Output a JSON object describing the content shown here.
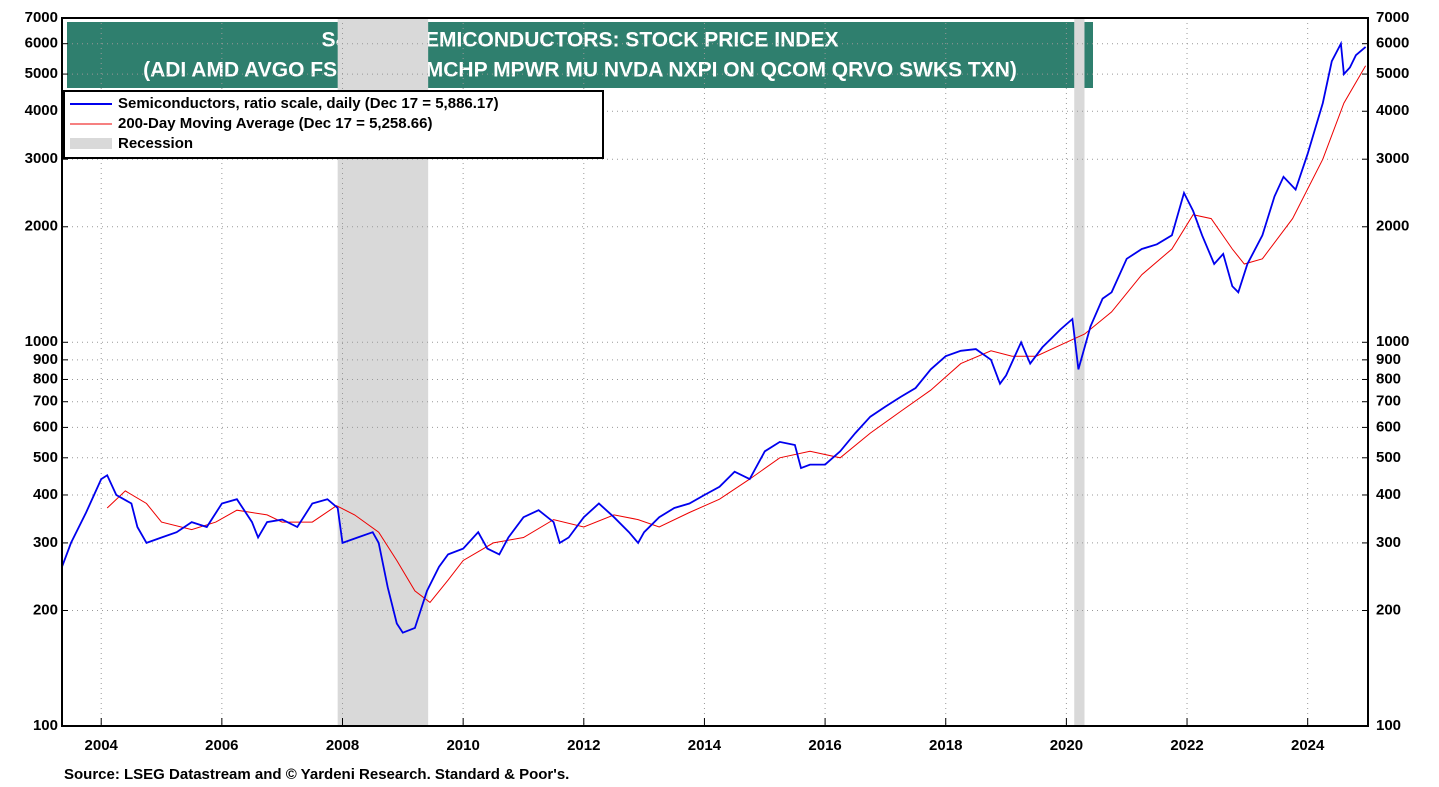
{
  "chart_data": {
    "type": "line",
    "title": "S&P 500 SEMICONDUCTORS: STOCK PRICE INDEX",
    "subtitle": "(ADI AMD AVGO FSLR INTC MCHP MPWR MU NVDA NXPI ON QCOM QRVO SWKS TXN)",
    "source": "Source: LSEG Datastream and © Yardeni Research. Standard & Poor's.",
    "log_scale": true,
    "grid": true,
    "legend": "upper left",
    "xlim": [
      2003.35,
      2025.0
    ],
    "xticks": [
      2004,
      2006,
      2008,
      2010,
      2012,
      2014,
      2016,
      2018,
      2020,
      2022,
      2024
    ],
    "ylim": [
      100,
      7000
    ],
    "yticks": [
      100,
      200,
      300,
      400,
      500,
      600,
      700,
      800,
      900,
      1000,
      2000,
      3000,
      4000,
      5000,
      6000,
      7000
    ],
    "recessions": {
      "name": "Recession",
      "color": "#d9d9d9",
      "ranges": [
        [
          2007.92,
          2009.42
        ],
        [
          2020.13,
          2020.3
        ]
      ]
    },
    "series": [
      {
        "name": "Semiconductors, ratio scale, daily (Dec 17 = 5,886.17)",
        "color": "#0000ee",
        "x": [
          2003.35,
          2003.5,
          2003.75,
          2004.0,
          2004.1,
          2004.25,
          2004.5,
          2004.6,
          2004.75,
          2005.0,
          2005.25,
          2005.5,
          2005.75,
          2006.0,
          2006.25,
          2006.5,
          2006.6,
          2006.75,
          2007.0,
          2007.25,
          2007.5,
          2007.75,
          2007.92,
          2008.0,
          2008.25,
          2008.5,
          2008.6,
          2008.75,
          2008.9,
          2009.0,
          2009.2,
          2009.4,
          2009.6,
          2009.75,
          2010.0,
          2010.25,
          2010.4,
          2010.6,
          2010.75,
          2011.0,
          2011.25,
          2011.5,
          2011.6,
          2011.75,
          2012.0,
          2012.25,
          2012.5,
          2012.75,
          2012.9,
          2013.0,
          2013.25,
          2013.5,
          2013.75,
          2014.0,
          2014.25,
          2014.5,
          2014.75,
          2015.0,
          2015.25,
          2015.5,
          2015.6,
          2015.75,
          2016.0,
          2016.25,
          2016.5,
          2016.75,
          2017.0,
          2017.25,
          2017.5,
          2017.75,
          2018.0,
          2018.25,
          2018.5,
          2018.75,
          2018.9,
          2019.0,
          2019.25,
          2019.4,
          2019.6,
          2019.9,
          2020.1,
          2020.2,
          2020.4,
          2020.6,
          2020.75,
          2021.0,
          2021.25,
          2021.5,
          2021.75,
          2021.95,
          2022.1,
          2022.25,
          2022.45,
          2022.6,
          2022.75,
          2022.85,
          2023.0,
          2023.25,
          2023.45,
          2023.6,
          2023.8,
          2024.0,
          2024.25,
          2024.4,
          2024.55,
          2024.6,
          2024.7,
          2024.8,
          2024.96
        ],
        "values": [
          260,
          300,
          360,
          440,
          450,
          400,
          380,
          330,
          300,
          310,
          320,
          340,
          330,
          380,
          390,
          340,
          310,
          340,
          345,
          330,
          380,
          390,
          370,
          300,
          310,
          320,
          300,
          230,
          185,
          175,
          180,
          225,
          260,
          280,
          290,
          320,
          290,
          280,
          310,
          350,
          365,
          340,
          300,
          310,
          350,
          380,
          350,
          320,
          300,
          320,
          350,
          370,
          380,
          400,
          420,
          460,
          440,
          520,
          550,
          540,
          470,
          480,
          480,
          520,
          580,
          640,
          680,
          720,
          760,
          850,
          920,
          950,
          960,
          900,
          780,
          820,
          1000,
          880,
          970,
          1080,
          1150,
          850,
          1100,
          1300,
          1350,
          1650,
          1750,
          1800,
          1900,
          2450,
          2200,
          1900,
          1600,
          1700,
          1400,
          1350,
          1600,
          1900,
          2400,
          2700,
          2500,
          3100,
          4200,
          5400,
          6000,
          5000,
          5200,
          5600,
          5886.17
        ]
      },
      {
        "name": "200-Day Moving Average (Dec 17 = 5,258.66)",
        "color": "#ee0000",
        "x": [
          2004.1,
          2004.4,
          2004.75,
          2005.0,
          2005.5,
          2005.9,
          2006.25,
          2006.75,
          2007.0,
          2007.5,
          2007.9,
          2008.2,
          2008.6,
          2008.9,
          2009.2,
          2009.45,
          2009.75,
          2010.0,
          2010.5,
          2011.0,
          2011.5,
          2012.0,
          2012.5,
          2012.9,
          2013.25,
          2013.75,
          2014.25,
          2014.75,
          2015.25,
          2015.75,
          2016.25,
          2016.75,
          2017.25,
          2017.75,
          2018.25,
          2018.75,
          2019.1,
          2019.5,
          2020.0,
          2020.3,
          2020.75,
          2021.25,
          2021.75,
          2022.1,
          2022.4,
          2022.75,
          2022.95,
          2023.25,
          2023.75,
          2024.25,
          2024.6,
          2024.96
        ],
        "values": [
          370,
          410,
          380,
          340,
          325,
          340,
          365,
          355,
          340,
          340,
          375,
          355,
          320,
          270,
          225,
          210,
          240,
          270,
          300,
          310,
          345,
          330,
          355,
          345,
          330,
          360,
          390,
          440,
          500,
          520,
          500,
          580,
          660,
          750,
          880,
          950,
          920,
          920,
          1000,
          1050,
          1200,
          1500,
          1750,
          2150,
          2100,
          1750,
          1600,
          1650,
          2100,
          3000,
          4200,
          5258.66
        ]
      }
    ]
  }
}
